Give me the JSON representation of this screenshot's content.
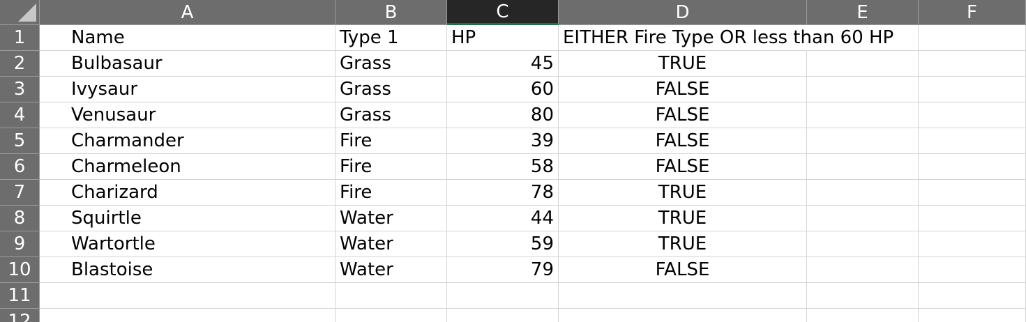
{
  "sheet": {
    "columns": [
      "A",
      "B",
      "C",
      "D",
      "E",
      "F"
    ],
    "selected_column": "C",
    "row_numbers": [
      "1",
      "2",
      "3",
      "4",
      "5",
      "6",
      "7",
      "8",
      "9",
      "10",
      "11",
      "12"
    ],
    "header_row": {
      "a": "Name",
      "b": "Type 1",
      "c": "HP",
      "d": "EITHER Fire Type OR less than 60 HP"
    },
    "rows": [
      {
        "name": "Bulbasaur",
        "type": "Grass",
        "hp": "45",
        "result": "TRUE"
      },
      {
        "name": "Ivysaur",
        "type": "Grass",
        "hp": "60",
        "result": "FALSE"
      },
      {
        "name": "Venusaur",
        "type": "Grass",
        "hp": "80",
        "result": "FALSE"
      },
      {
        "name": "Charmander",
        "type": "Fire",
        "hp": "39",
        "result": "FALSE"
      },
      {
        "name": "Charmeleon",
        "type": "Fire",
        "hp": "58",
        "result": "FALSE"
      },
      {
        "name": "Charizard",
        "type": "Fire",
        "hp": "78",
        "result": "TRUE"
      },
      {
        "name": "Squirtle",
        "type": "Water",
        "hp": "44",
        "result": "TRUE"
      },
      {
        "name": "Wartortle",
        "type": "Water",
        "hp": "59",
        "result": "TRUE"
      },
      {
        "name": "Blastoise",
        "type": "Water",
        "hp": "79",
        "result": "FALSE"
      }
    ],
    "colors": {
      "header_bg": "#6d6d6d",
      "header_selected_bg": "#262626",
      "selection_accent": "#1e7145",
      "gridline": "#d4d4d4"
    }
  }
}
